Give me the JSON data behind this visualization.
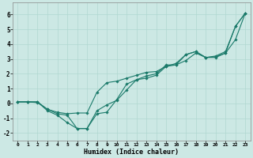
{
  "xlabel": "Humidex (Indice chaleur)",
  "ylabel": "",
  "bg_color": "#cce8e4",
  "grid_color": "#b0d8d0",
  "line_color": "#1a7a6a",
  "xlim": [
    -0.5,
    23.5
  ],
  "ylim": [
    -2.5,
    6.8
  ],
  "xticks": [
    0,
    1,
    2,
    3,
    4,
    5,
    6,
    7,
    8,
    9,
    10,
    11,
    12,
    13,
    14,
    15,
    16,
    17,
    18,
    19,
    20,
    21,
    22,
    23
  ],
  "yticks": [
    -2,
    -1,
    0,
    1,
    2,
    3,
    4,
    5,
    6
  ],
  "line1_x": [
    0,
    1,
    2,
    3,
    4,
    5,
    6,
    7,
    8,
    9,
    10,
    11,
    12,
    13,
    14,
    15,
    16,
    17,
    18,
    19,
    20,
    21,
    22,
    23
  ],
  "line1_y": [
    0.1,
    0.1,
    0.1,
    -0.5,
    -0.8,
    -1.3,
    -1.7,
    -1.7,
    -0.5,
    -0.1,
    0.2,
    0.9,
    1.6,
    1.7,
    1.9,
    2.5,
    2.7,
    3.3,
    3.5,
    3.1,
    3.2,
    3.5,
    5.2,
    6.1
  ],
  "line2_x": [
    0,
    1,
    2,
    3,
    4,
    5,
    6,
    7,
    8,
    9,
    10,
    11,
    12,
    13,
    14,
    15,
    16,
    17,
    18,
    19,
    20,
    21,
    22,
    23
  ],
  "line2_y": [
    0.1,
    0.1,
    0.05,
    -0.4,
    -0.6,
    -0.7,
    -0.65,
    -0.65,
    0.75,
    1.4,
    1.5,
    1.7,
    1.9,
    2.1,
    2.15,
    2.5,
    2.6,
    3.3,
    3.5,
    3.1,
    3.15,
    3.4,
    4.3,
    6.1
  ],
  "line3_x": [
    0,
    1,
    2,
    3,
    4,
    5,
    6,
    7,
    8,
    9,
    10,
    11,
    12,
    13,
    14,
    15,
    16,
    17,
    18,
    19,
    20,
    21,
    22,
    23
  ],
  "line3_y": [
    0.1,
    0.1,
    0.1,
    -0.4,
    -0.7,
    -0.8,
    -1.7,
    -1.7,
    -0.7,
    -0.6,
    0.25,
    1.3,
    1.6,
    1.85,
    2.0,
    2.6,
    2.6,
    2.9,
    3.4,
    3.1,
    3.1,
    3.4,
    5.2,
    6.1
  ]
}
